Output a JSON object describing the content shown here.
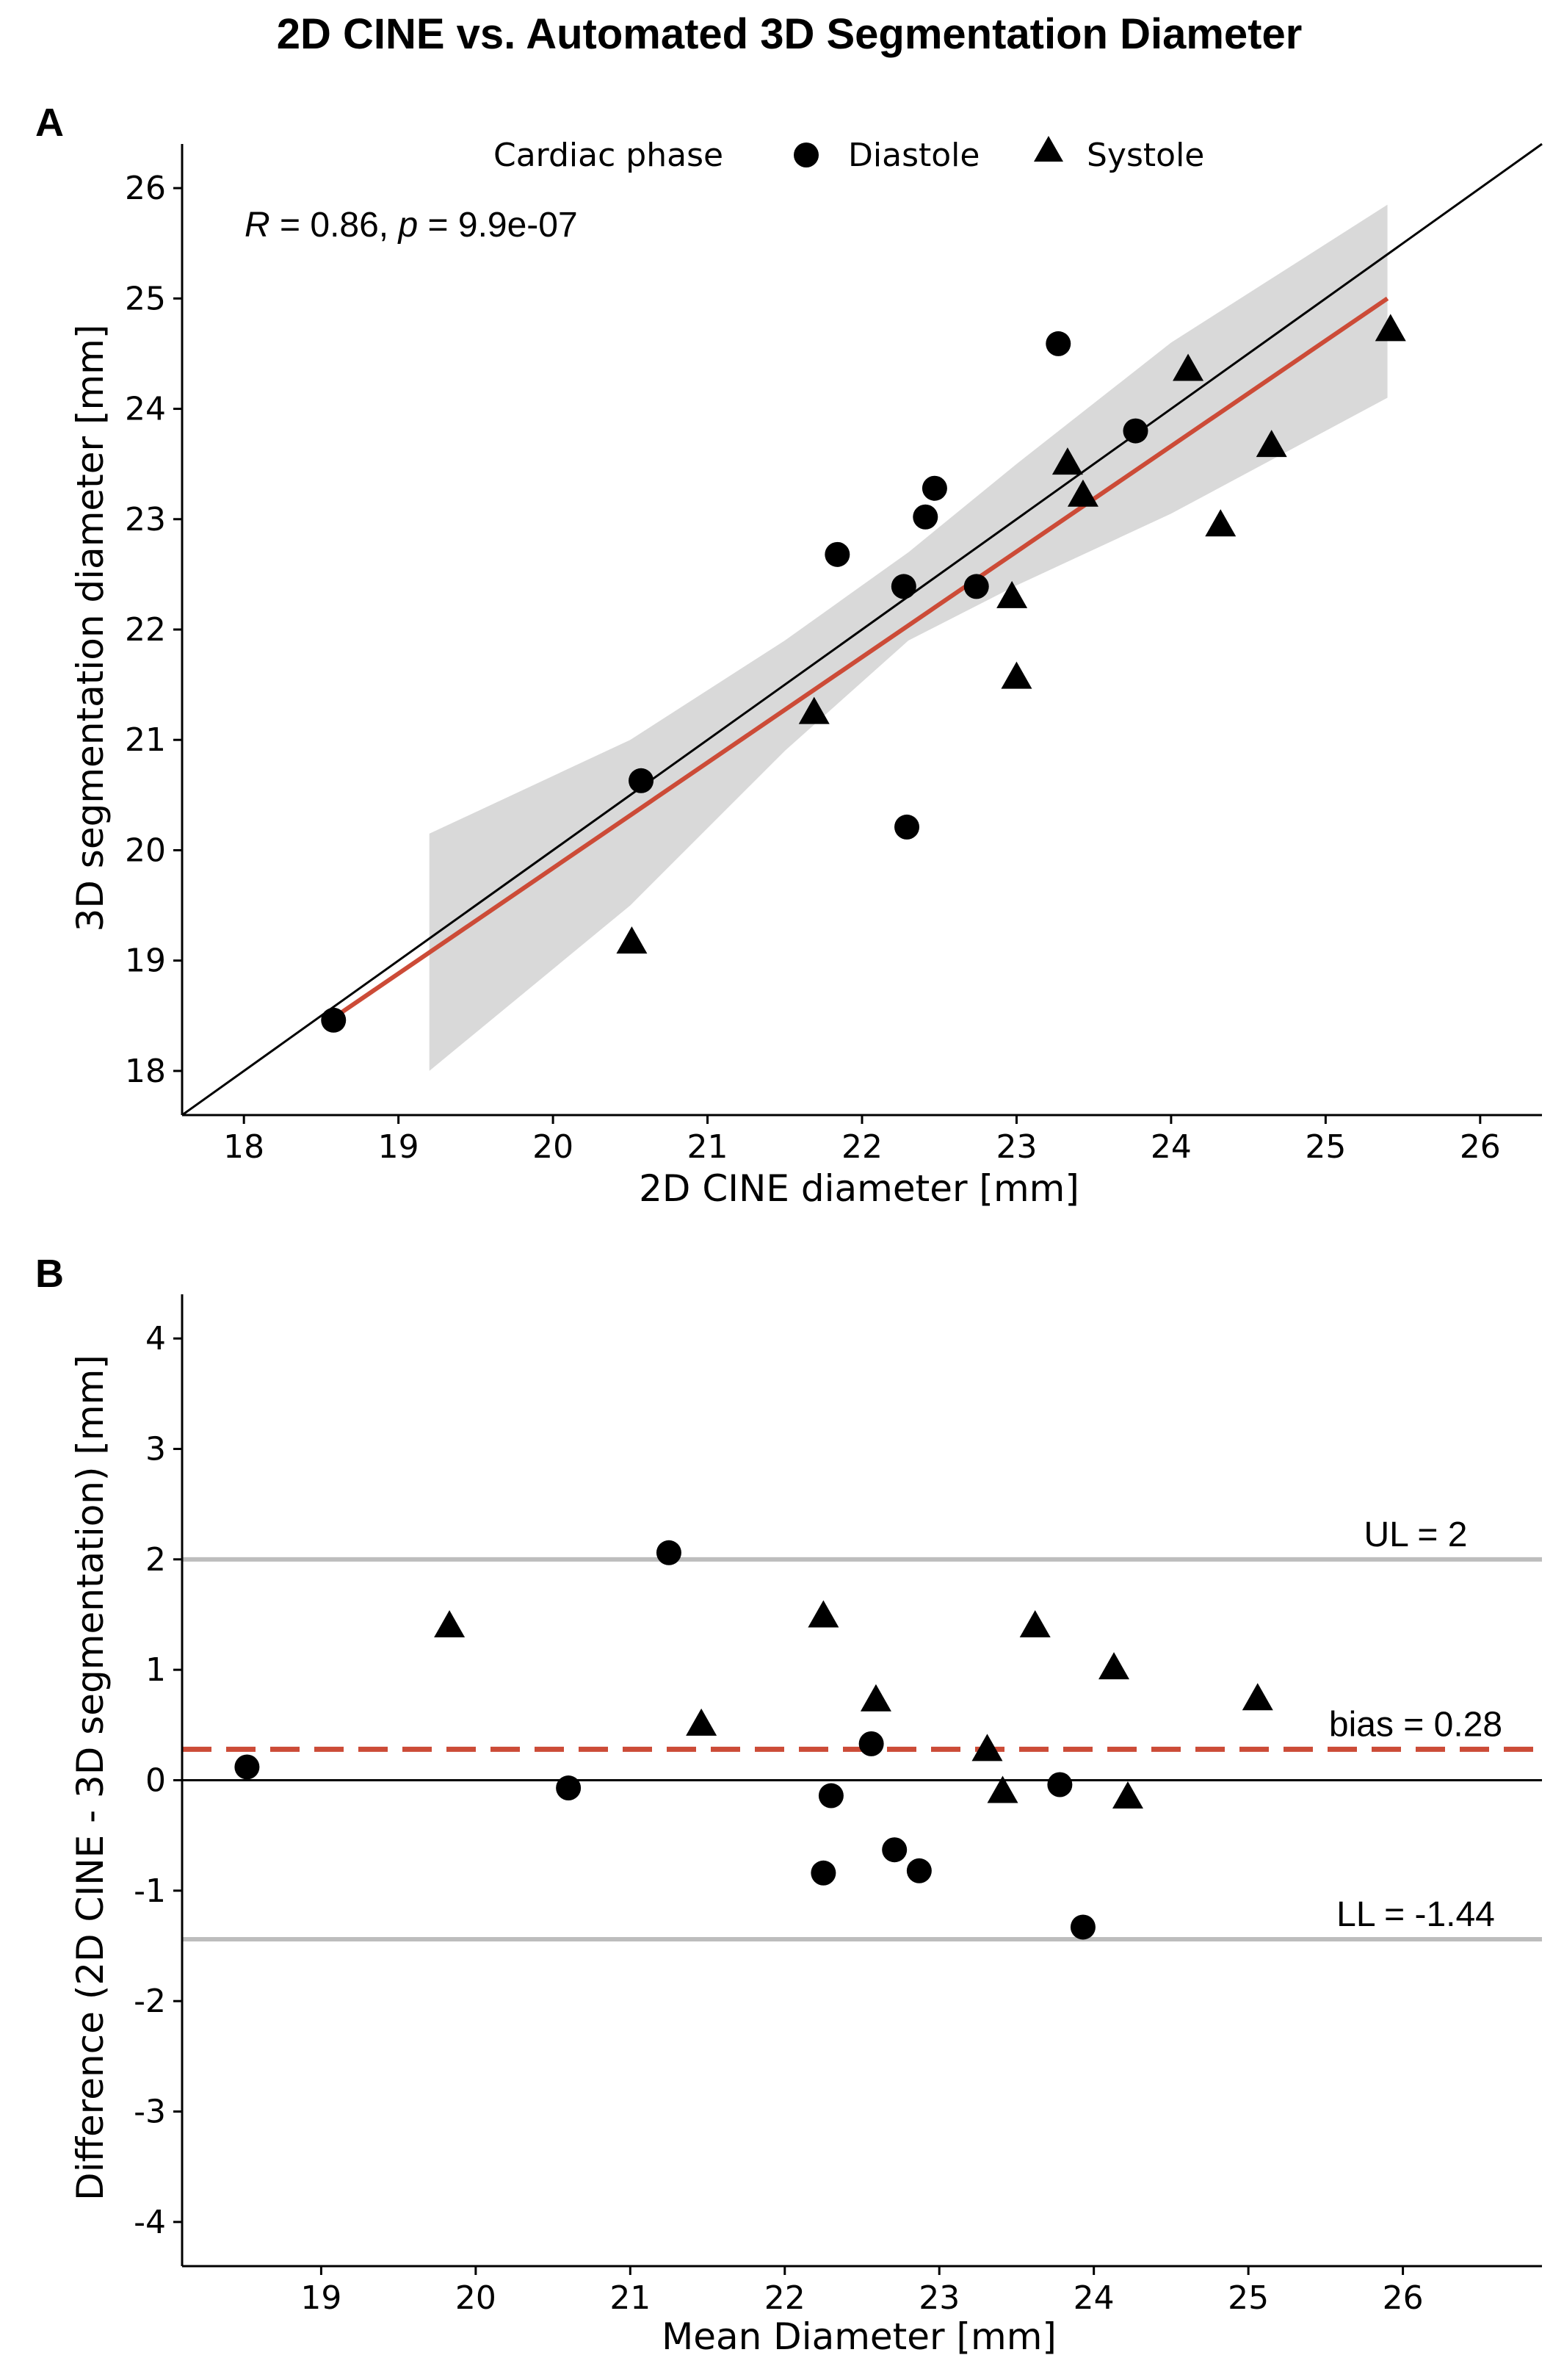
{
  "title": "2D CINE vs. Automated 3D Segmentation Diameter",
  "legend": {
    "title": "Cardiac phase",
    "items": [
      "Diastole",
      "Systole"
    ]
  },
  "chart_data": [
    {
      "panel": "A",
      "type": "scatter",
      "xlabel": "2D CINE diameter [mm]",
      "ylabel": "3D segmentation diameter [mm]",
      "xlim": [
        17.6,
        26.4
      ],
      "ylim": [
        17.6,
        26.4
      ],
      "xticks": [
        18,
        19,
        20,
        21,
        22,
        23,
        24,
        25,
        26
      ],
      "yticks": [
        18,
        19,
        20,
        21,
        22,
        23,
        24,
        25,
        26
      ],
      "annotation": {
        "R": "R",
        "r_value": " = 0.86, ",
        "p": "p",
        "p_value": " = 9.9e-07"
      },
      "identity_line": true,
      "regression": {
        "x_range": [
          18.6,
          25.4
        ],
        "y_range": [
          18.5,
          25.0
        ],
        "color": "#cc4b37"
      },
      "confidence_band": [
        {
          "x": 19.2,
          "lower": 18.0,
          "upper": 20.15
        },
        {
          "x": 20.5,
          "lower": 19.5,
          "upper": 21.0
        },
        {
          "x": 21.5,
          "lower": 20.9,
          "upper": 21.9
        },
        {
          "x": 22.3,
          "lower": 21.9,
          "upper": 22.7
        },
        {
          "x": 23.0,
          "lower": 22.4,
          "upper": 23.5
        },
        {
          "x": 24.0,
          "lower": 23.05,
          "upper": 24.6
        },
        {
          "x": 25.4,
          "lower": 24.1,
          "upper": 25.85
        }
      ],
      "series": [
        {
          "name": "Diastole",
          "marker": "circle",
          "points": [
            [
              18.58,
              18.46
            ],
            [
              20.57,
              20.63
            ],
            [
              21.84,
              22.68
            ],
            [
              22.27,
              22.39
            ],
            [
              22.29,
              20.21
            ],
            [
              22.41,
              23.02
            ],
            [
              22.47,
              23.28
            ],
            [
              22.74,
              22.39
            ],
            [
              23.27,
              24.59
            ],
            [
              23.77,
              23.8
            ]
          ]
        },
        {
          "name": "Systole",
          "marker": "triangle",
          "points": [
            [
              20.51,
              19.15
            ],
            [
              21.69,
              21.23
            ],
            [
              22.97,
              22.28
            ],
            [
              23.0,
              21.55
            ],
            [
              23.33,
              23.49
            ],
            [
              23.43,
              23.2
            ],
            [
              24.11,
              24.34
            ],
            [
              24.32,
              22.93
            ],
            [
              24.65,
              23.65
            ],
            [
              25.42,
              24.7
            ]
          ]
        }
      ]
    },
    {
      "panel": "B",
      "type": "scatter",
      "xlabel": "Mean Diameter [mm]",
      "ylabel": "Difference (2D CINE - 3D segmentation) [mm]",
      "xlim": [
        18.1,
        26.9
      ],
      "ylim": [
        -4.4,
        4.4
      ],
      "xticks": [
        19,
        20,
        21,
        22,
        23,
        24,
        25,
        26
      ],
      "yticks": [
        -4,
        -3,
        -2,
        -1,
        0,
        1,
        2,
        3,
        4
      ],
      "limits": [
        {
          "id": "ul",
          "label": "UL = 2",
          "value": 2.0,
          "style": "solid",
          "color": "#bdbdbd"
        },
        {
          "id": "bias",
          "label": "bias = 0.28",
          "value": 0.28,
          "style": "dashed",
          "color": "#cc4b37"
        },
        {
          "id": "ll",
          "label": "LL = -1.44",
          "value": -1.44,
          "style": "solid",
          "color": "#bdbdbd"
        }
      ],
      "series": [
        {
          "name": "Diastole",
          "marker": "circle",
          "points": [
            [
              18.52,
              0.12
            ],
            [
              20.6,
              -0.07
            ],
            [
              21.25,
              2.06
            ],
            [
              22.25,
              -0.84
            ],
            [
              22.3,
              -0.14
            ],
            [
              22.56,
              0.33
            ],
            [
              22.71,
              -0.63
            ],
            [
              22.87,
              -0.82
            ],
            [
              23.78,
              -0.04
            ],
            [
              23.93,
              -1.33
            ]
          ]
        },
        {
          "name": "Systole",
          "marker": "triangle",
          "points": [
            [
              19.83,
              1.38
            ],
            [
              21.46,
              0.49
            ],
            [
              22.25,
              1.47
            ],
            [
              22.59,
              0.71
            ],
            [
              23.31,
              0.26
            ],
            [
              23.41,
              -0.12
            ],
            [
              23.62,
              1.38
            ],
            [
              24.13,
              1.0
            ],
            [
              24.22,
              -0.17
            ],
            [
              25.06,
              0.72
            ]
          ]
        }
      ]
    }
  ]
}
